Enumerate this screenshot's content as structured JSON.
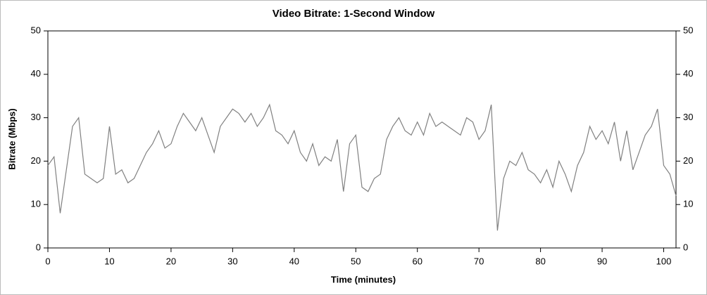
{
  "chart_data": {
    "type": "line",
    "title": "Video Bitrate: 1-Second Window",
    "x_label": "Time (minutes)",
    "y_label": "Bitrate (Mbps)",
    "x": [
      0,
      1,
      2,
      3,
      4,
      5,
      6,
      7,
      8,
      9,
      10,
      11,
      12,
      13,
      14,
      15,
      16,
      17,
      18,
      19,
      20,
      21,
      22,
      23,
      24,
      25,
      26,
      27,
      28,
      29,
      30,
      31,
      32,
      33,
      34,
      35,
      36,
      37,
      38,
      39,
      40,
      41,
      42,
      43,
      44,
      45,
      46,
      47,
      48,
      49,
      50,
      51,
      52,
      53,
      54,
      55,
      56,
      57,
      58,
      59,
      60,
      61,
      62,
      63,
      64,
      65,
      66,
      67,
      68,
      69,
      70,
      71,
      72,
      73,
      74,
      75,
      76,
      77,
      78,
      79,
      80,
      81,
      82,
      83,
      84,
      85,
      86,
      87,
      88,
      89,
      90,
      91,
      92,
      93,
      94,
      95,
      96,
      97,
      98,
      99,
      100,
      101,
      102
    ],
    "series": [
      {
        "name": "Video Bitrate",
        "color": "#808080",
        "values": [
          19,
          21,
          8,
          18,
          28,
          30,
          17,
          16,
          15,
          16,
          28,
          17,
          18,
          15,
          16,
          19,
          22,
          24,
          27,
          23,
          24,
          28,
          31,
          29,
          27,
          30,
          26,
          22,
          28,
          30,
          32,
          31,
          29,
          31,
          28,
          30,
          33,
          27,
          26,
          24,
          27,
          22,
          20,
          24,
          19,
          21,
          20,
          25,
          13,
          24,
          26,
          14,
          13,
          16,
          17,
          25,
          28,
          30,
          27,
          26,
          29,
          26,
          31,
          28,
          29,
          28,
          27,
          26,
          30,
          29,
          25,
          27,
          33,
          4,
          16,
          20,
          19,
          22,
          18,
          17,
          15,
          18,
          14,
          20,
          17,
          13,
          19,
          22,
          28,
          25,
          27,
          24,
          29,
          20,
          27,
          18,
          22,
          26,
          28,
          32,
          19,
          17,
          12
        ]
      }
    ],
    "xlim": [
      0,
      102
    ],
    "ylim": [
      0,
      50
    ],
    "xticks": [
      0,
      10,
      20,
      30,
      40,
      50,
      60,
      70,
      80,
      90,
      100
    ],
    "yticks": [
      0,
      10,
      20,
      30,
      40,
      50
    ]
  }
}
